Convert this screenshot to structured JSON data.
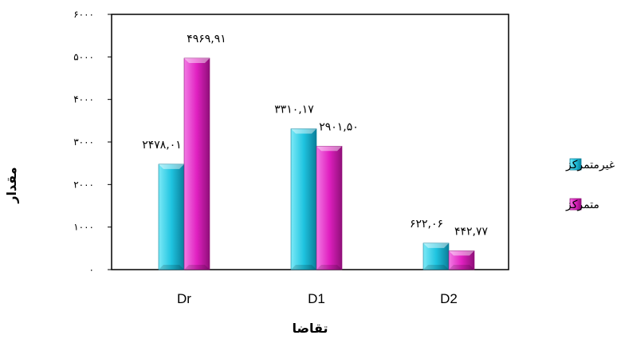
{
  "chart_data": {
    "type": "bar",
    "categories": [
      "Dr",
      "D1",
      "D2"
    ],
    "series": [
      {
        "name": "غیرمتمرکز",
        "values": [
          2478.01,
          3310.17,
          622.06
        ],
        "labels": [
          "۲۴۷۸,۰۱",
          "۳۳۱۰,۱۷",
          "۶۲۲,۰۶"
        ],
        "color": "#1fc4e0"
      },
      {
        "name": "متمرکز",
        "values": [
          4969.91,
          2901.5,
          442.77
        ],
        "labels": [
          "۴۹۶۹,۹۱",
          "۲۹۰۱,۵۰",
          "۴۴۲,۷۷"
        ],
        "color": "#e020c0"
      }
    ],
    "xlabel": "تقاضا",
    "ylabel": "مقدار",
    "ylim": [
      0,
      6000
    ],
    "yticks": [
      0,
      1000,
      2000,
      3000,
      4000,
      5000,
      6000
    ],
    "ytick_labels": [
      "۰",
      "۱۰۰۰",
      "۲۰۰۰",
      "۳۰۰۰",
      "۴۰۰۰",
      "۵۰۰۰",
      "۶۰۰۰"
    ],
    "grid": false,
    "legend_position": "right",
    "style": "3d-beveled"
  }
}
